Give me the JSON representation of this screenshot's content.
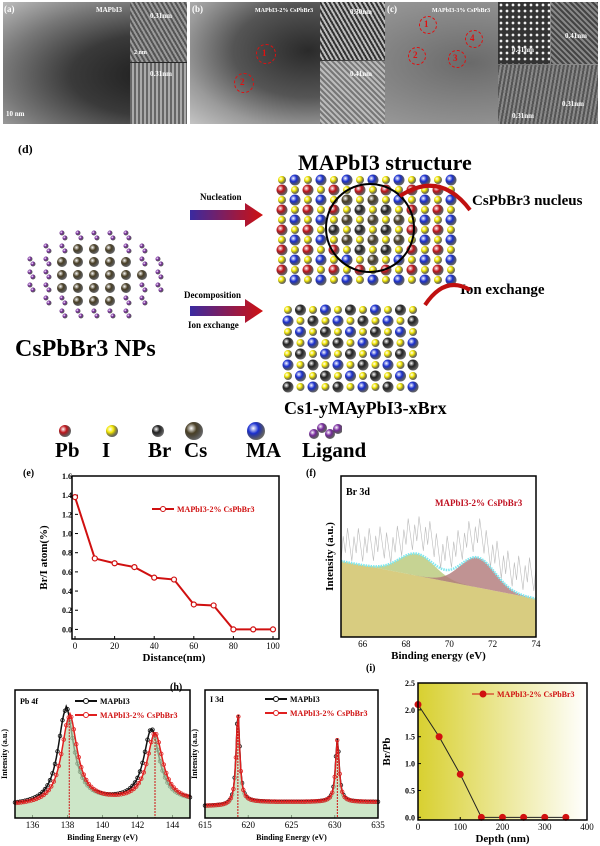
{
  "panels": {
    "a": {
      "label": "(a)",
      "title": "MAPbI3",
      "insets": [
        "0.31nm",
        "0.31nm"
      ],
      "scale": "10 nm",
      "inset_scale": "2 nm"
    },
    "b": {
      "label": "(b)",
      "title": "MAPbI3-2% CsPbBr3",
      "insets": [
        "0.30nm",
        "0.41nm"
      ],
      "regions": [
        "1",
        "2"
      ]
    },
    "c": {
      "label": "(c)",
      "title": "MAPbI3-3% CsPbBr3",
      "insets": [
        "0.41nm",
        "0.41nm",
        "0.31nm",
        "0.31nm"
      ],
      "regions": [
        "1",
        "2",
        "3",
        "4"
      ]
    },
    "d": {
      "label": "(d)",
      "structure_title": "MAPbI3 structure",
      "nucleus_label": "CsPbBr3 nucleus",
      "arrow1": "Nucleation",
      "arrow2a": "Decomposition",
      "arrow2b": "Ion exchange",
      "ion_exchange": "Ion exchange",
      "nps_label": "CsPbBr3 NPs",
      "product_label": "Cs1-yMAyPbI3-xBrx",
      "legend": [
        {
          "name": "Pb",
          "color": "#c0141a"
        },
        {
          "name": "I",
          "color": "#f2e600"
        },
        {
          "name": "Br",
          "color": "#222222"
        },
        {
          "name": "Cs",
          "color": "#4a4026"
        },
        {
          "name": "MA",
          "color": "#1a2fd0"
        },
        {
          "name": "Ligand",
          "color": "#7a2ca0"
        }
      ]
    }
  },
  "chart_data": [
    {
      "id": "e",
      "label": "(e)",
      "type": "line",
      "xlabel": "Distance(nm)",
      "ylabel": "Br/I atom(%)",
      "xlim": [
        0,
        100
      ],
      "ylim": [
        -0.1,
        1.6
      ],
      "xticks": [
        0,
        20,
        40,
        60,
        80,
        100
      ],
      "yticks": [
        0.0,
        0.2,
        0.4,
        0.6,
        0.8,
        1.0,
        1.2,
        1.4,
        1.6
      ],
      "series": [
        {
          "name": "MAPbI3-2% CsPbBr3",
          "color": "#d01010",
          "x": [
            0,
            10,
            20,
            30,
            40,
            50,
            60,
            70,
            80,
            90,
            100
          ],
          "y": [
            1.38,
            0.74,
            0.69,
            0.65,
            0.54,
            0.52,
            0.26,
            0.25,
            0.0,
            0.0,
            0.0
          ]
        }
      ],
      "legend": "top-right"
    },
    {
      "id": "f",
      "label": "(f)",
      "type": "area",
      "title": "Br 3d",
      "annotation": "MAPbI3-2% CsPbBr3",
      "xlabel": "Binding energy (eV)",
      "ylabel": "Intensity (a.u.)",
      "xlim": [
        65,
        74
      ],
      "xticks": [
        66,
        68,
        70,
        72,
        74
      ],
      "peaks": [
        {
          "center": 68.5,
          "color": "#b8c878"
        },
        {
          "center": 71.3,
          "color": "#b07878"
        }
      ],
      "fit_color": "#7ee8f0"
    },
    {
      "id": "g",
      "label": "(g)",
      "type": "line",
      "title": "Pb 4f",
      "xlabel": "Binding Energy (eV)",
      "ylabel": "Intensity (a.u.)",
      "xlim": [
        135,
        145
      ],
      "xticks": [
        136,
        138,
        140,
        142,
        144
      ],
      "series": [
        {
          "name": "MAPbI3",
          "color": "#111111",
          "peaks": [
            137.9,
            142.8
          ]
        },
        {
          "name": "MAPbI3-2% CsPbBr3",
          "color": "#e02020",
          "peaks": [
            138.1,
            143.0
          ]
        }
      ],
      "legend": "top-right"
    },
    {
      "id": "h",
      "label": "(h)",
      "type": "line",
      "title": "I 3d",
      "xlabel": "Binding Energy (eV)",
      "ylabel": "Intensity (a.u.)",
      "xlim": [
        615,
        635
      ],
      "xticks": [
        615,
        620,
        625,
        630,
        635
      ],
      "series": [
        {
          "name": "MAPbI3",
          "color": "#111111",
          "peaks": [
            618.8,
            630.3
          ]
        },
        {
          "name": "MAPbI3-2% CsPbBr3",
          "color": "#e02020",
          "peaks": [
            618.8,
            630.3
          ]
        }
      ],
      "legend": "top-right"
    },
    {
      "id": "i",
      "label": "(i)",
      "type": "line",
      "xlabel": "Depth (nm)",
      "ylabel": "Br/Pb",
      "xlim": [
        0,
        400
      ],
      "ylim": [
        0,
        2.5
      ],
      "xticks": [
        0,
        100,
        200,
        300,
        400
      ],
      "yticks": [
        0.0,
        0.5,
        1.0,
        1.5,
        2.0,
        2.5
      ],
      "series": [
        {
          "name": "MAPbI3-2% CsPbBr3",
          "color": "#d01010",
          "x": [
            0,
            50,
            100,
            150,
            200,
            250,
            300,
            350
          ],
          "y": [
            2.1,
            1.5,
            0.8,
            0.0,
            0.0,
            0.0,
            0.0,
            0.0
          ]
        }
      ],
      "legend": "top-right",
      "background": "#d8d030"
    }
  ]
}
